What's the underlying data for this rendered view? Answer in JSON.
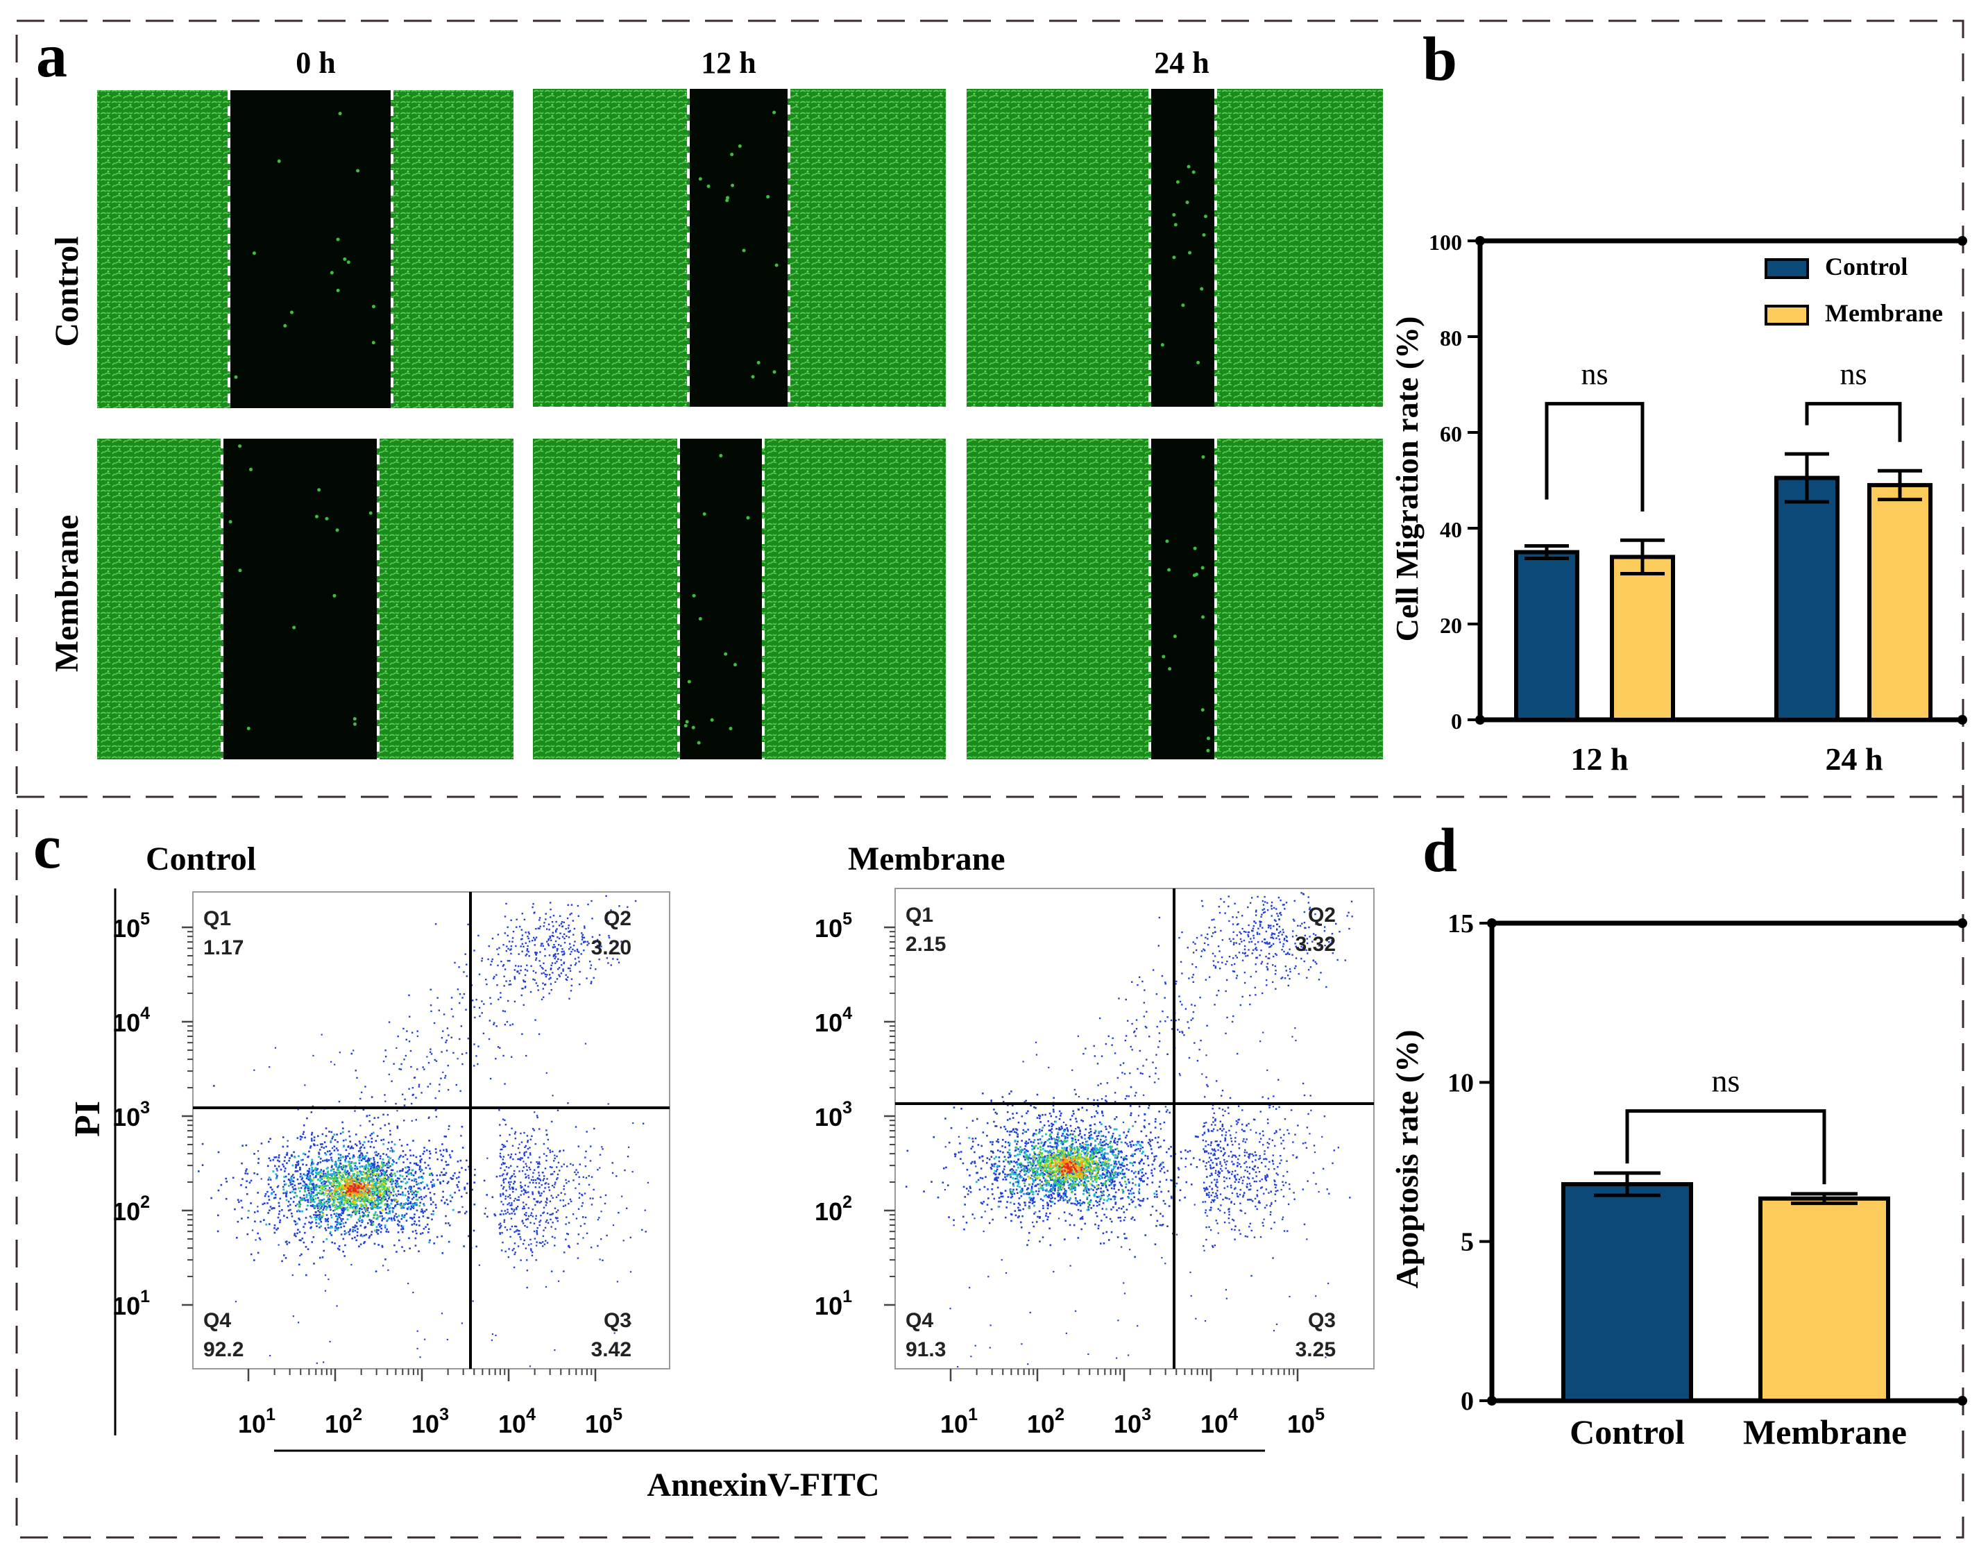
{
  "panels": {
    "a": {
      "letter": "a",
      "col_labels": [
        "0 h",
        "12 h",
        "24 h"
      ],
      "row_labels": [
        "Control",
        "Membrane"
      ],
      "image_color": "#1e8a1e",
      "gap_color": "#020802"
    },
    "b": {
      "letter": "b"
    },
    "c": {
      "letter": "c",
      "plots": [
        {
          "title": "Control",
          "q1": "1.17",
          "q2": "3.20",
          "q3": "3.42",
          "q4": "92.2"
        },
        {
          "title": "Membrane",
          "q1": "2.15",
          "q2": "3.32",
          "q3": "3.25",
          "q4": "91.3"
        }
      ],
      "quadrant_names": [
        "Q1",
        "Q2",
        "Q3",
        "Q4"
      ],
      "ylabel": "PI",
      "xlabel": "AnnexinV-FITC",
      "y_ticks": [
        "1",
        "2",
        "3",
        "4",
        "5"
      ],
      "x_ticks": [
        "1",
        "2",
        "3",
        "4",
        "5"
      ],
      "tick_base": "10"
    },
    "d": {
      "letter": "d"
    }
  },
  "colors": {
    "control": "#0b4a78",
    "membrane": "#fdcb5c",
    "frame_dash": "#3a2c2c",
    "dots": "#1f3fd8"
  },
  "chart_data": [
    {
      "panel": "b",
      "type": "bar",
      "categories": [
        "12 h",
        "24 h"
      ],
      "series": [
        {
          "name": "Control",
          "values": [
            35,
            50.5
          ],
          "errors": [
            1.3,
            5
          ]
        },
        {
          "name": "Membrane",
          "values": [
            34,
            49
          ],
          "errors": [
            3.5,
            3
          ]
        }
      ],
      "ylabel": "Cell Migration rate (%)",
      "ylim": [
        0,
        100
      ],
      "yticks": [
        0,
        20,
        40,
        60,
        80,
        100
      ],
      "legend": "top-right",
      "annotations": [
        "ns",
        "ns"
      ]
    },
    {
      "panel": "d",
      "type": "bar",
      "categories": [
        "Control",
        "Membrane"
      ],
      "values": [
        6.8,
        6.35
      ],
      "errors": [
        0.35,
        0.15
      ],
      "ylabel": "Apoptosis rate (%)",
      "ylim": [
        0,
        15
      ],
      "yticks": [
        0,
        5,
        10,
        15
      ],
      "annotations": [
        "ns"
      ]
    }
  ]
}
